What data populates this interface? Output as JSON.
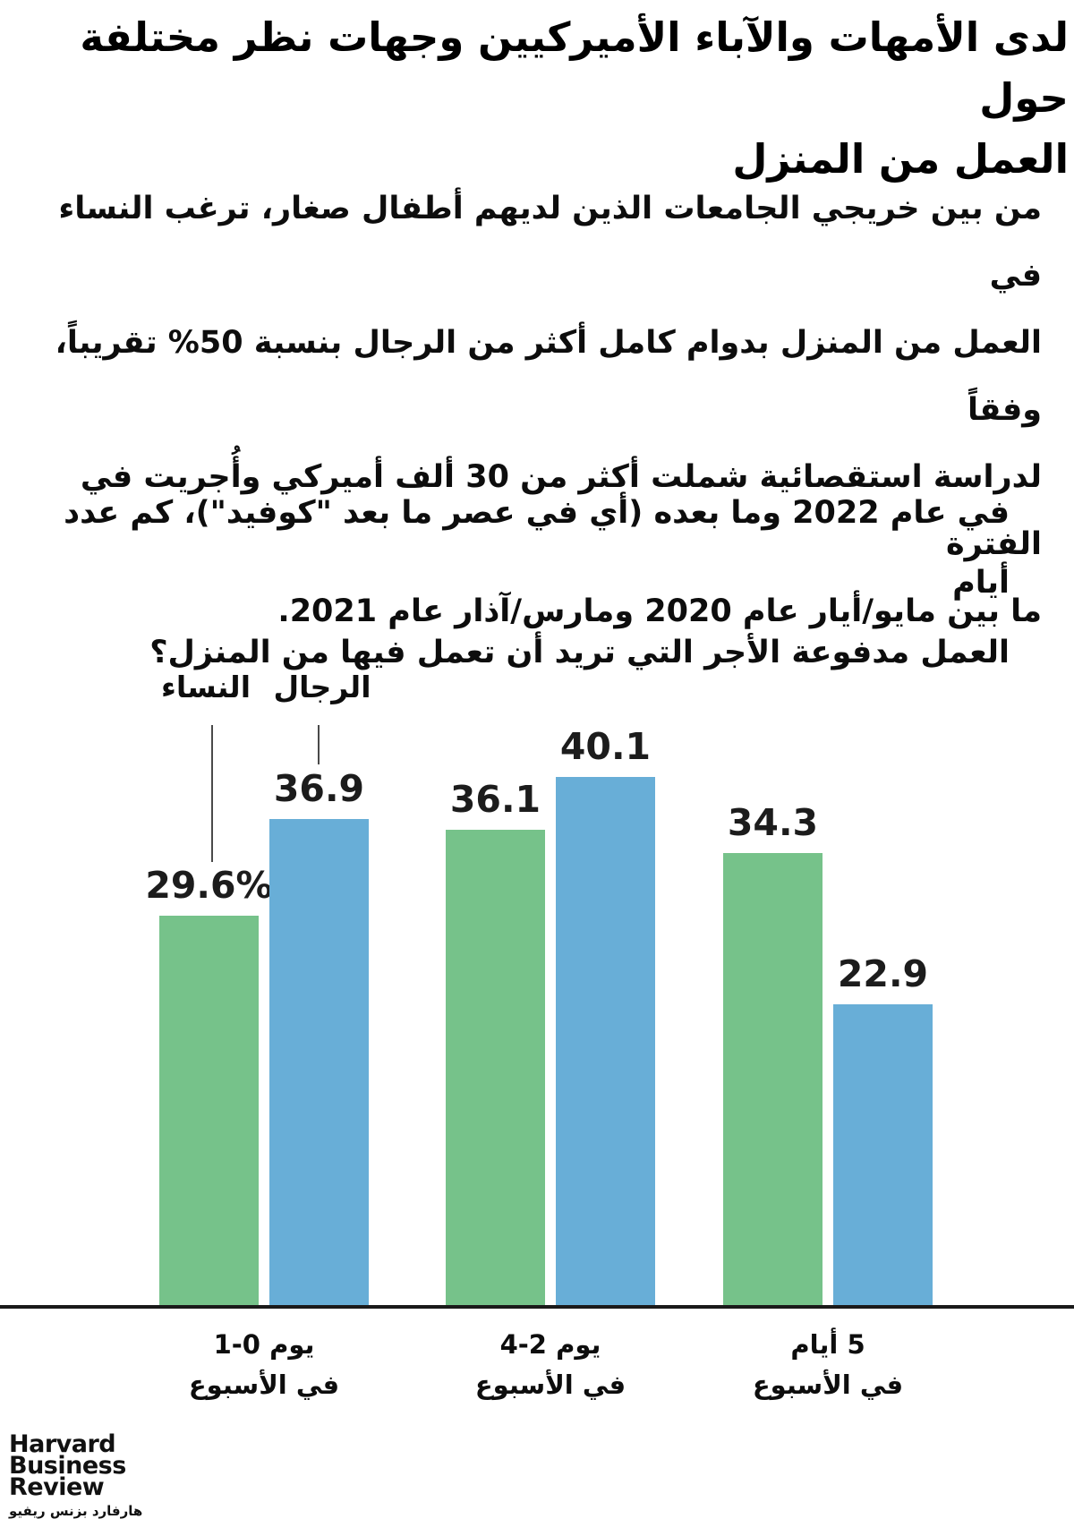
{
  "title": {
    "lines": [
      "لدى الأمهات والآباء الأميركيين وجهات نظر مختلفة حول",
      "العمل من المنزل"
    ]
  },
  "intro": {
    "lines": [
      "من بين خريجي الجامعات الذين لديهم أطفال صغار، ترغب النساء في",
      "العمل من المنزل بدوام كامل أكثر من الرجال بنسبة 50% تقريباً، وفقاً",
      "لدراسة استقصائية شملت أكثر من 30 ألف أميركي وأُجريت في الفترة",
      "ما بين مايو/أيار عام 2020 ومارس/آذار عام 2021."
    ]
  },
  "question": {
    "lines": [
      "في عام 2022 وما بعده (أي في عصر ما بعد \"كوفيد\")، كم عدد أيام",
      "العمل مدفوعة الأجر التي تريد أن تعمل فيها من المنزل؟"
    ]
  },
  "legend": {
    "women_label": "النساء",
    "men_label": "الرجال"
  },
  "chart_data": {
    "type": "bar",
    "categories": [
      {
        "days": "1-0 يوم",
        "per_week": "في الأسبوع"
      },
      {
        "days": "4-2 يوم",
        "per_week": "في الأسبوع"
      },
      {
        "days": "5 أيام",
        "per_week": "في الأسبوع"
      }
    ],
    "series": [
      {
        "name": "النساء",
        "color": "#76C28A",
        "values": [
          29.6,
          36.1,
          34.3
        ],
        "labels": [
          "29.6%",
          "36.1",
          "34.3"
        ]
      },
      {
        "name": "الرجال",
        "color": "#68AED7",
        "values": [
          36.9,
          40.1,
          22.9
        ],
        "labels": [
          "36.9",
          "40.1",
          "22.9"
        ]
      }
    ],
    "ylim": [
      0,
      45
    ],
    "grid": false,
    "value_labels_shown": true,
    "legend_position": "above-first-group"
  },
  "logo": {
    "lines": [
      "Harvard",
      "Business",
      "Review"
    ],
    "tagline": "هارفارد بزنس ريفيو"
  },
  "colors": {
    "background": "#ffffff",
    "text": "#111111",
    "axis": "#1a1a1a",
    "pointer": "#4a4a4a",
    "women_bar": "#76C28A",
    "men_bar": "#68AED7"
  }
}
